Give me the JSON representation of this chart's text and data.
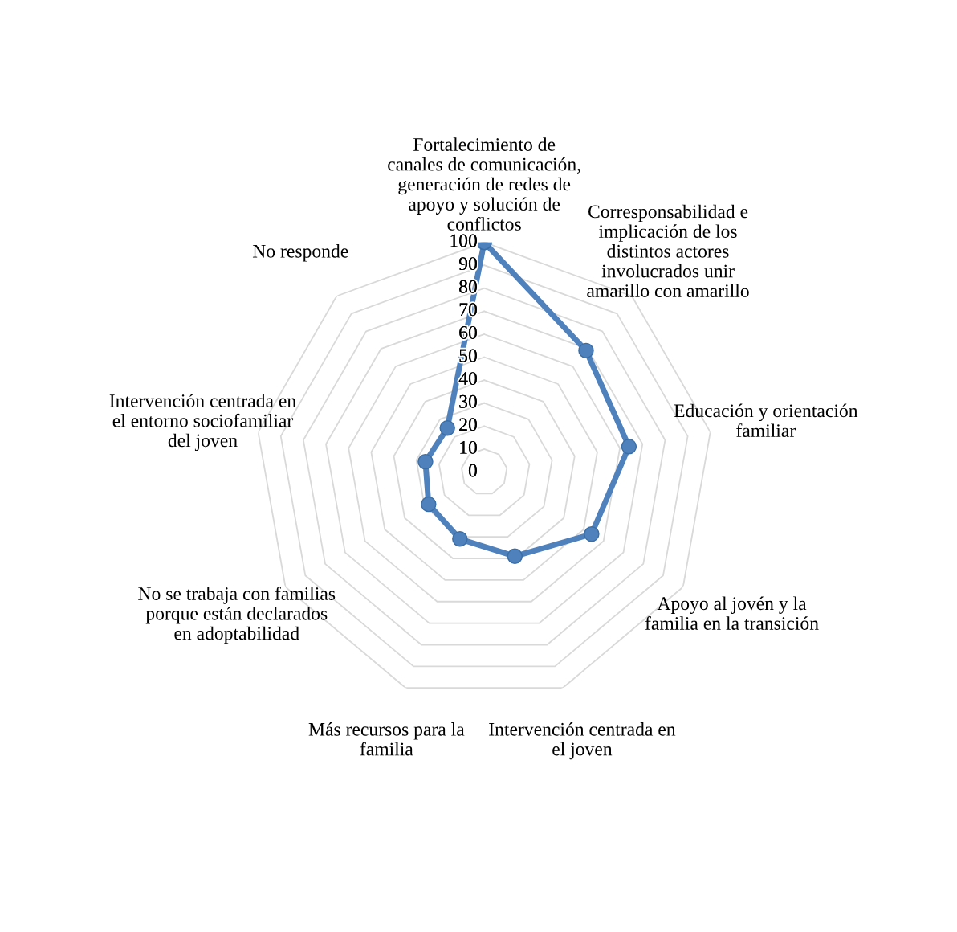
{
  "chart_data": {
    "type": "radar",
    "categories": [
      "Fortalecimiento de\ncanales de comunicación,\ngeneración de redes de\napoyo y solución de\nconflictos",
      "Corresponsabilidad e\nimplicación de los\ndistintos actores\ninvolucrados unir\namarillo con amarillo",
      "Educación y orientación\nfamiliar",
      "Apoyo al jovén y la\nfamilia en la transición",
      "Intervención centrada en\nel joven",
      "Más recursos para la\nfamilia",
      "No se trabaja con familias\nporque están declarados\nen adoptabilidad",
      "Intervención centrada en\nel entorno sociofamiliar\ndel joven",
      "No responde"
    ],
    "series": [
      {
        "color": "#4f81bd",
        "values": [
          100,
          69,
          64,
          54,
          39,
          31,
          28,
          26,
          25
        ]
      }
    ],
    "ylim": [
      0,
      100
    ],
    "yticks": [
      0,
      10,
      20,
      30,
      40,
      50,
      60,
      70,
      80,
      90,
      100
    ],
    "grid": true,
    "marker": "circle",
    "line_style": "solid"
  }
}
